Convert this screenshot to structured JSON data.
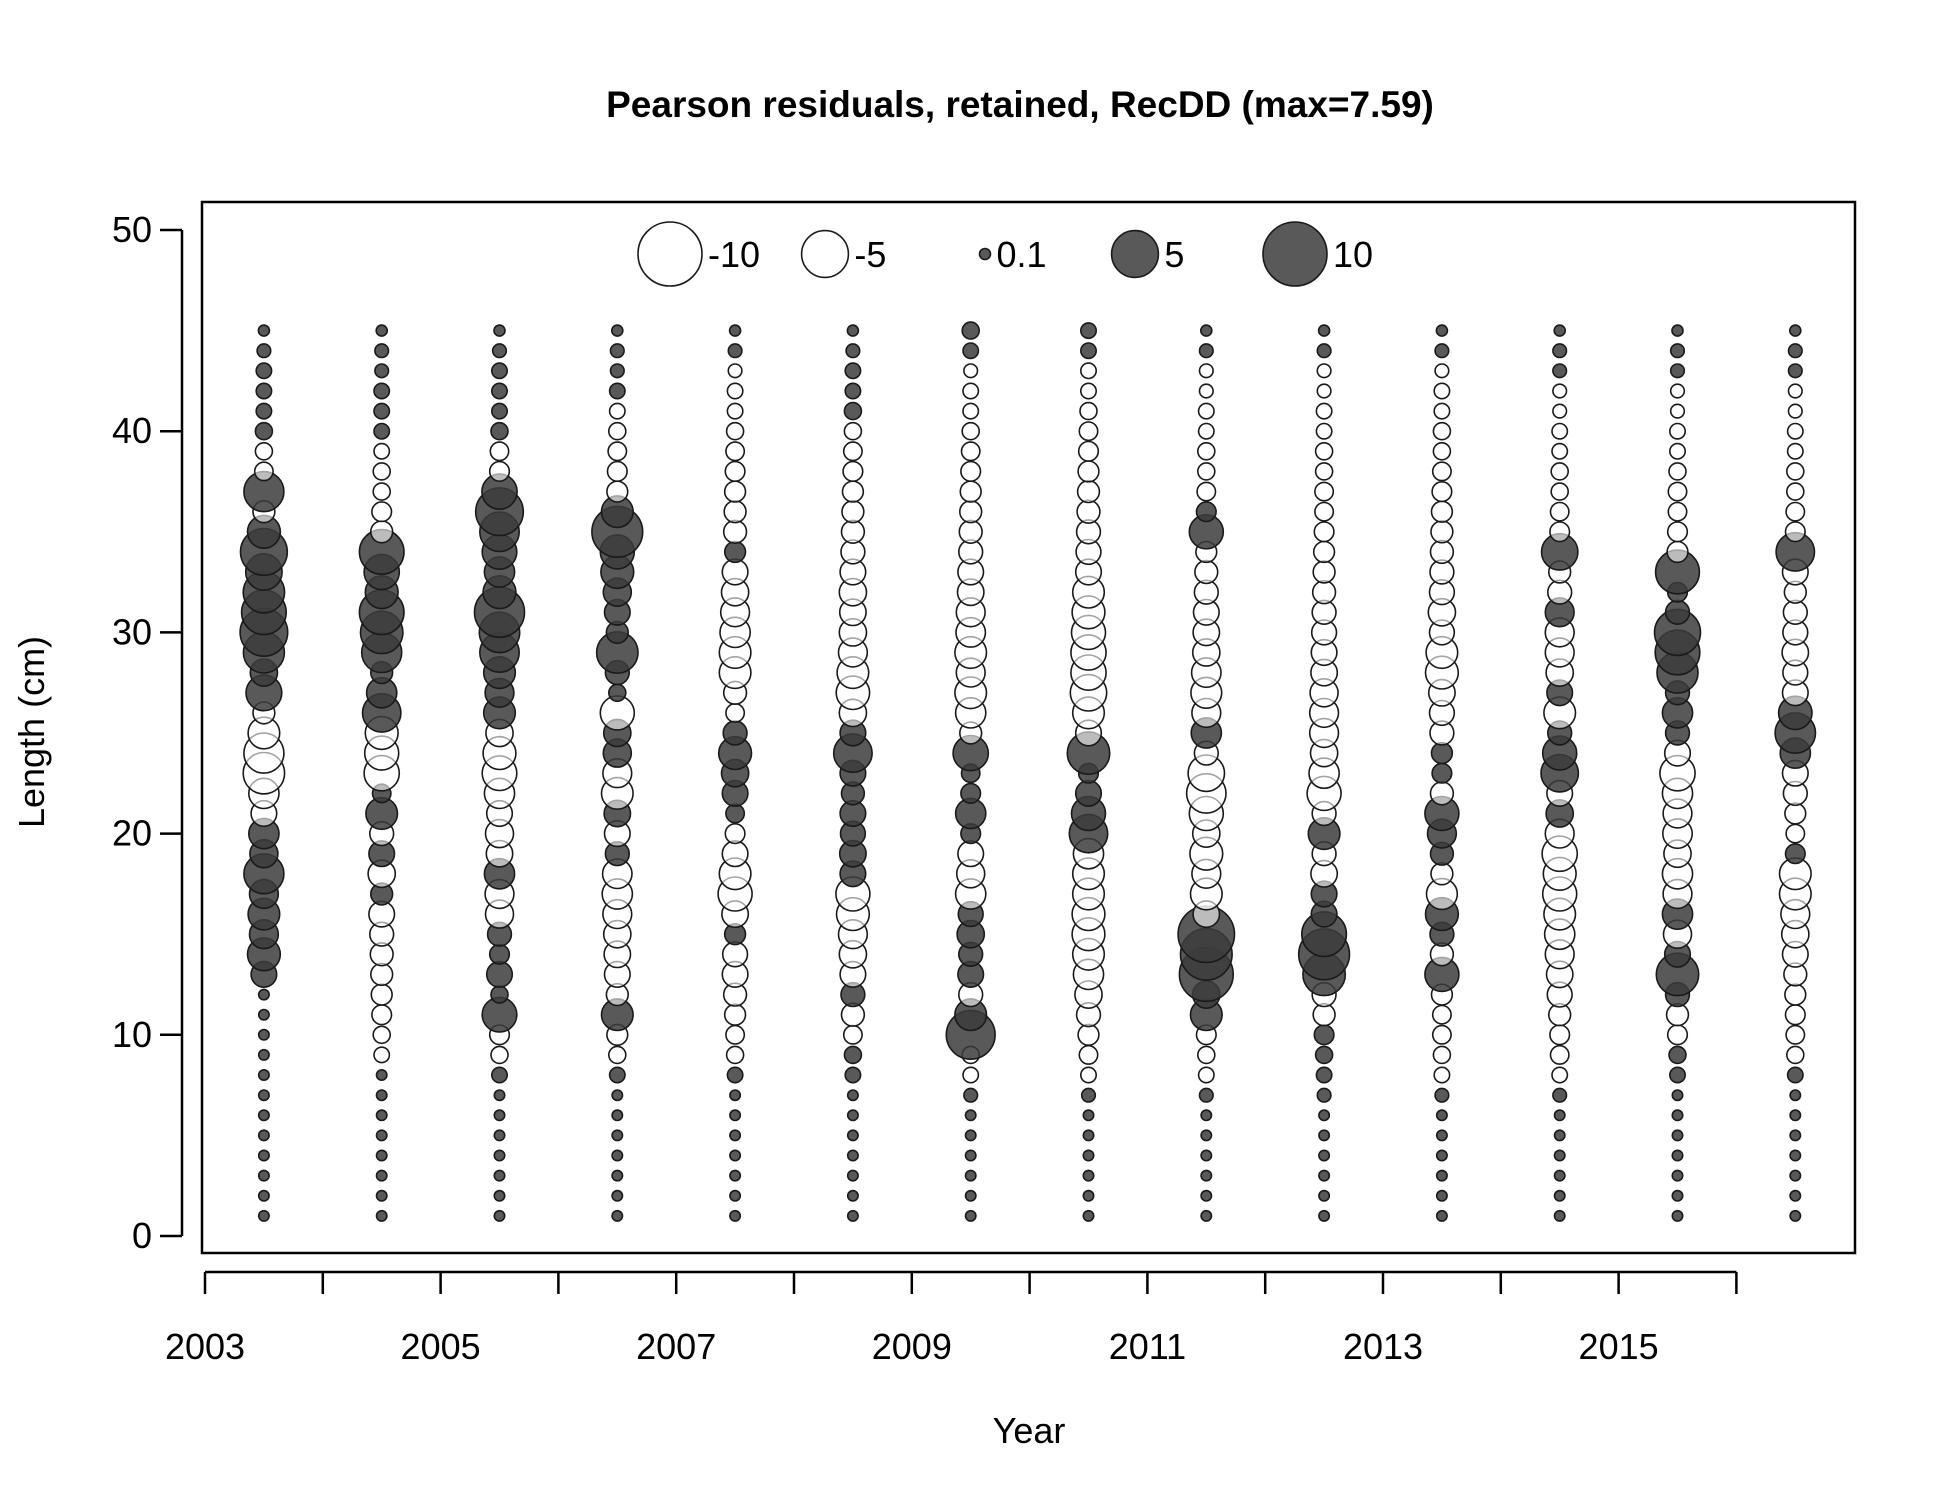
{
  "chart_data": {
    "type": "scatter",
    "subtype": "bubble",
    "title": "Pearson residuals, retained, RecDD (max=7.59)",
    "xlabel": "Year",
    "ylabel": "Length (cm)",
    "xlim": [
      2003,
      2017
    ],
    "ylim": [
      -1,
      51
    ],
    "x_ticks": [
      2003,
      2004,
      2005,
      2006,
      2007,
      2008,
      2009,
      2010,
      2011,
      2012,
      2013,
      2014,
      2015,
      2016
    ],
    "x_tick_labels": [
      "2003",
      "",
      "2005",
      "",
      "2007",
      "",
      "2009",
      "",
      "2011",
      "",
      "2013",
      "",
      "2015",
      ""
    ],
    "y_ticks": [
      0,
      10,
      20,
      30,
      40,
      50
    ],
    "y_tick_labels": [
      "0",
      "10",
      "20",
      "30",
      "40",
      "50"
    ],
    "legend": {
      "placement": "top-center",
      "entries": [
        {
          "label": "-10",
          "value": -10
        },
        {
          "label": "-5",
          "value": -5
        },
        {
          "label": "0.1",
          "value": 0.1
        },
        {
          "label": "5",
          "value": 5
        },
        {
          "label": "10",
          "value": 10
        }
      ]
    },
    "colors": {
      "positive_fill": "#3c3c3c",
      "negative_fill": "#ffffff",
      "stroke": "#1a1a1a"
    },
    "years": [
      2003.5,
      2004.5,
      2005.5,
      2006.5,
      2007.5,
      2008.5,
      2009.5,
      2010.5,
      2011.5,
      2012.5,
      2013.5,
      2014.5,
      2015.5,
      2016.5
    ],
    "length_bins": [
      1,
      45
    ],
    "residuals": [
      {
        "year": 2003.5,
        "values": {
          "13": 1.2,
          "14": 2.2,
          "15": 1.6,
          "16": 2.0,
          "17": 1.6,
          "18": 3.5,
          "19": 1.5,
          "20": 1.8,
          "21": -1.2,
          "22": -1.8,
          "23": -3.8,
          "24": -3.5,
          "25": -2.0,
          "26": -0.8,
          "27": 2.7,
          "28": 1.4,
          "29": 3.7,
          "30": 5.2,
          "31": 4.5,
          "32": 3.8,
          "33": 2.8,
          "34": 5.0,
          "35": 2.2,
          "36": -0.8,
          "37": 3.5,
          "38": -0.5,
          "39": -0.4,
          "40": 0.4,
          "41": 0.3,
          "42": 0.3,
          "43": 0.3,
          "44": 0.2,
          "45": 0.1
        }
      },
      {
        "year": 2004.5,
        "values": {
          "9": -0.3,
          "10": -0.4,
          "11": -0.6,
          "12": -0.7,
          "13": -0.8,
          "14": -0.9,
          "15": -1.0,
          "16": -1.2,
          "17": 0.8,
          "18": -1.4,
          "19": 1.2,
          "20": -1.0,
          "21": 2.0,
          "22": 0.5,
          "23": -2.6,
          "24": -2.4,
          "25": -2.2,
          "26": 3.2,
          "27": 1.8,
          "28": 0.8,
          "29": 3.5,
          "30": 4.0,
          "31": 4.5,
          "32": 2.2,
          "33": 2.6,
          "34": 4.5,
          "35": -0.8,
          "36": -0.6,
          "37": -0.4,
          "38": -0.4,
          "39": -0.3,
          "40": 0.3,
          "41": 0.3,
          "42": 0.3,
          "43": 0.2,
          "44": 0.2,
          "45": 0.1
        }
      },
      {
        "year": 2005.5,
        "values": {
          "8": 0.3,
          "9": -0.4,
          "10": -0.6,
          "11": 2.5,
          "12": 0.4,
          "13": 1.2,
          "14": 0.6,
          "15": 1.0,
          "16": -1.5,
          "17": -1.6,
          "18": 1.8,
          "19": -1.3,
          "20": -1.5,
          "21": -1.2,
          "22": -1.8,
          "23": -2.5,
          "24": -2.2,
          "25": -1.4,
          "26": 2.0,
          "27": 1.6,
          "28": 2.0,
          "29": 3.4,
          "30": 3.6,
          "31": 5.8,
          "32": 2.2,
          "33": 1.8,
          "34": 2.5,
          "35": 3.4,
          "36": 5.2,
          "37": 2.6,
          "38": -0.6,
          "39": -0.5,
          "40": 0.4,
          "41": 0.3,
          "42": 0.3,
          "43": 0.3,
          "44": 0.2,
          "45": 0.1
        }
      },
      {
        "year": 2006.5,
        "values": {
          "8": 0.3,
          "9": -0.4,
          "10": -0.7,
          "11": 2.0,
          "12": -0.8,
          "13": -1.2,
          "14": -1.3,
          "15": -1.4,
          "16": -1.6,
          "17": -1.8,
          "18": -1.7,
          "19": 1.0,
          "20": -1.2,
          "21": 1.3,
          "22": -2.0,
          "23": -1.6,
          "24": 1.5,
          "25": 1.4,
          "26": -2.4,
          "27": 0.4,
          "28": 1.0,
          "29": 3.8,
          "30": 0.8,
          "31": 1.2,
          "32": 1.5,
          "33": 2.2,
          "34": 2.4,
          "35": 6.0,
          "36": 2.0,
          "37": -0.7,
          "38": -0.6,
          "39": -0.5,
          "40": -0.4,
          "41": -0.3,
          "42": 0.3,
          "43": 0.2,
          "44": 0.2,
          "45": 0.1
        }
      },
      {
        "year": 2007.5,
        "values": {
          "8": 0.3,
          "9": -0.4,
          "10": -0.5,
          "11": -0.7,
          "12": -0.9,
          "13": -1.2,
          "14": -1.1,
          "15": 0.7,
          "16": -1.3,
          "17": -2.4,
          "18": -2.0,
          "19": -1.2,
          "20": -0.6,
          "21": 0.5,
          "22": 1.2,
          "23": 1.4,
          "24": 2.2,
          "25": 1.0,
          "26": -0.5,
          "27": -0.9,
          "28": -2.0,
          "29": -2.0,
          "30": -1.8,
          "31": -1.6,
          "32": -1.4,
          "33": -1.2,
          "34": 0.7,
          "35": -0.9,
          "36": -0.8,
          "37": -0.7,
          "38": -0.6,
          "39": -0.5,
          "40": -0.4,
          "41": -0.3,
          "42": -0.3,
          "43": -0.2,
          "44": 0.2,
          "45": 0.1
        }
      },
      {
        "year": 2008.5,
        "values": {
          "8": 0.3,
          "9": 0.4,
          "10": -0.5,
          "11": -0.9,
          "12": 1.0,
          "13": -1.2,
          "14": -1.4,
          "15": -1.6,
          "16": -2.2,
          "17": -2.4,
          "18": 1.2,
          "19": 1.3,
          "20": 1.1,
          "21": 1.2,
          "22": 0.9,
          "23": 1.2,
          "24": 3.2,
          "25": 1.2,
          "26": -1.4,
          "27": -2.3,
          "28": -2.0,
          "29": -1.6,
          "30": -1.4,
          "31": -1.3,
          "32": -1.4,
          "33": -1.2,
          "34": -1.0,
          "35": -0.9,
          "36": -0.8,
          "37": -0.7,
          "38": -0.6,
          "39": -0.5,
          "40": -0.4,
          "41": 0.4,
          "42": 0.3,
          "43": 0.3,
          "44": 0.2,
          "45": 0.1
        }
      },
      {
        "year": 2009.5,
        "values": {
          "7": 0.2,
          "8": -0.3,
          "9": -0.4,
          "10": 5.5,
          "11": 2.0,
          "12": -1.0,
          "13": 1.2,
          "14": 1.0,
          "15": 1.4,
          "16": 1.1,
          "17": -1.8,
          "18": -1.5,
          "19": -1.2,
          "20": 0.6,
          "21": 1.8,
          "22": 0.6,
          "23": 0.5,
          "24": 2.6,
          "25": -0.8,
          "26": -1.8,
          "27": -2.0,
          "28": -1.6,
          "29": -2.0,
          "30": -1.7,
          "31": -1.6,
          "32": -1.3,
          "33": -1.2,
          "34": -1.0,
          "35": -0.9,
          "36": -0.8,
          "37": -0.7,
          "38": -0.6,
          "39": -0.5,
          "40": -0.4,
          "41": -0.3,
          "42": -0.3,
          "43": -0.2,
          "44": 0.3,
          "45": 0.4
        }
      },
      {
        "year": 2010.5,
        "values": {
          "7": 0.2,
          "8": -0.3,
          "9": -0.5,
          "10": -0.7,
          "11": -1.0,
          "12": -1.4,
          "13": -1.8,
          "14": -2.0,
          "15": -2.2,
          "16": -2.2,
          "17": -2.0,
          "18": -2.0,
          "19": -1.8,
          "20": 3.2,
          "21": 2.4,
          "22": 1.2,
          "23": 0.6,
          "24": 4.0,
          "25": -1.2,
          "26": -2.0,
          "27": -2.8,
          "28": -2.6,
          "29": -2.6,
          "30": -2.4,
          "31": -2.2,
          "32": -2.0,
          "33": -1.2,
          "34": -1.1,
          "35": -1.0,
          "36": -0.9,
          "37": -0.8,
          "38": -0.7,
          "39": -0.6,
          "40": -0.5,
          "41": -0.4,
          "42": -0.3,
          "43": -0.3,
          "44": 0.3,
          "45": 0.3
        }
      },
      {
        "year": 2011.5,
        "values": {
          "7": 0.2,
          "8": -0.3,
          "9": -0.4,
          "10": -0.6,
          "11": 2.0,
          "12": 1.4,
          "13": 6.8,
          "14": 6.2,
          "15": 7.59,
          "16": -1.3,
          "17": -2.0,
          "18": -1.6,
          "19": -2.2,
          "20": -1.4,
          "21": -2.4,
          "22": -3.4,
          "23": -2.8,
          "24": -1.0,
          "25": 1.8,
          "26": -1.6,
          "27": -1.9,
          "28": -1.7,
          "29": -1.4,
          "30": -1.3,
          "31": -1.2,
          "32": -1.0,
          "33": -0.9,
          "34": -0.7,
          "35": 2.4,
          "36": 0.6,
          "37": -0.5,
          "38": -0.4,
          "39": -0.4,
          "40": -0.3,
          "41": -0.3,
          "42": -0.2,
          "43": -0.2,
          "44": 0.2,
          "45": 0.1
        }
      },
      {
        "year": 2012.5,
        "values": {
          "7": 0.2,
          "8": 0.3,
          "9": 0.4,
          "10": 0.6,
          "11": -0.8,
          "12": -1.0,
          "13": 4.0,
          "14": 6.0,
          "15": 4.5,
          "16": 1.2,
          "17": 1.2,
          "18": -1.3,
          "19": -1.0,
          "20": 2.0,
          "21": -1.0,
          "22": -2.4,
          "23": -1.8,
          "24": -1.4,
          "25": -1.6,
          "26": -1.6,
          "27": -1.5,
          "28": -1.3,
          "29": -1.2,
          "30": -1.1,
          "31": -1.0,
          "32": -0.9,
          "33": -0.8,
          "34": -0.7,
          "35": -0.6,
          "36": -0.5,
          "37": -0.5,
          "38": -0.4,
          "39": -0.4,
          "40": -0.3,
          "41": -0.3,
          "42": -0.2,
          "43": -0.2,
          "44": 0.2,
          "45": 0.1
        }
      },
      {
        "year": 2013.5,
        "values": {
          "7": 0.2,
          "8": -0.3,
          "9": -0.4,
          "10": -0.5,
          "11": -0.5,
          "12": -0.7,
          "13": 2.4,
          "14": -0.9,
          "15": 1.0,
          "16": 2.2,
          "17": -1.9,
          "18": -0.8,
          "19": 0.9,
          "20": 1.6,
          "21": 2.4,
          "22": -0.9,
          "23": 0.6,
          "24": 0.7,
          "25": -1.0,
          "26": -1.1,
          "27": -1.3,
          "28": -2.2,
          "29": -2.0,
          "30": -1.1,
          "31": -1.4,
          "32": -1.1,
          "33": -1.0,
          "34": -0.9,
          "35": -0.8,
          "36": -0.7,
          "37": -0.6,
          "38": -0.5,
          "39": -0.4,
          "40": -0.4,
          "41": -0.3,
          "42": -0.3,
          "43": -0.2,
          "44": 0.2,
          "45": 0.1
        }
      },
      {
        "year": 2014.5,
        "values": {
          "7": 0.2,
          "8": -0.3,
          "9": -0.5,
          "10": -0.6,
          "11": -0.8,
          "12": -1.1,
          "13": -1.3,
          "14": -1.6,
          "15": -1.8,
          "16": -2.0,
          "17": -2.4,
          "18": -2.2,
          "19": -2.6,
          "20": -1.6,
          "21": 1.4,
          "22": -1.2,
          "23": 3.0,
          "24": 2.4,
          "25": 1.0,
          "26": -2.0,
          "27": 1.2,
          "28": -1.4,
          "29": -1.6,
          "30": -1.6,
          "31": 1.6,
          "32": -1.0,
          "33": -0.8,
          "34": 2.8,
          "35": -0.6,
          "36": -0.5,
          "37": -0.4,
          "38": -0.4,
          "39": -0.3,
          "40": -0.3,
          "41": -0.2,
          "42": -0.2,
          "43": 0.2,
          "44": 0.2,
          "45": 0.1
        }
      },
      {
        "year": 2015.5,
        "values": {
          "8": 0.3,
          "9": 0.4,
          "10": -0.6,
          "11": -0.8,
          "12": 1.0,
          "13": 4.0,
          "14": 1.2,
          "15": -1.5,
          "16": 1.8,
          "17": -1.6,
          "18": -1.8,
          "19": -1.4,
          "20": -1.7,
          "21": -1.6,
          "22": -1.8,
          "23": -2.6,
          "24": -1.2,
          "25": 1.0,
          "26": 1.8,
          "27": 1.0,
          "28": 3.7,
          "29": 4.5,
          "30": 4.8,
          "31": 1.0,
          "32": 0.6,
          "33": 4.3,
          "34": -0.7,
          "35": -0.6,
          "36": -0.5,
          "37": -0.5,
          "38": -0.4,
          "39": -0.3,
          "40": -0.3,
          "41": -0.2,
          "42": -0.2,
          "43": 0.2,
          "44": 0.2,
          "45": 0.1
        }
      },
      {
        "year": 2016.5,
        "values": {
          "8": 0.3,
          "9": -0.4,
          "10": -0.5,
          "11": -0.6,
          "12": -0.7,
          "13": -0.9,
          "14": -1.2,
          "15": -1.4,
          "16": -1.6,
          "17": -2.0,
          "18": -2.0,
          "19": 0.6,
          "20": -0.5,
          "21": -0.7,
          "22": -1.0,
          "23": -1.2,
          "24": 1.8,
          "25": 3.6,
          "26": 2.3,
          "27": -1.2,
          "28": -1.1,
          "29": -1.3,
          "30": -1.1,
          "31": -1.0,
          "32": -0.8,
          "33": -1.2,
          "34": 3.2,
          "35": -0.6,
          "36": -0.5,
          "37": -0.4,
          "38": -0.4,
          "39": -0.3,
          "40": -0.3,
          "41": -0.2,
          "42": -0.2,
          "43": 0.2,
          "44": 0.2,
          "45": 0.1
        }
      }
    ]
  }
}
